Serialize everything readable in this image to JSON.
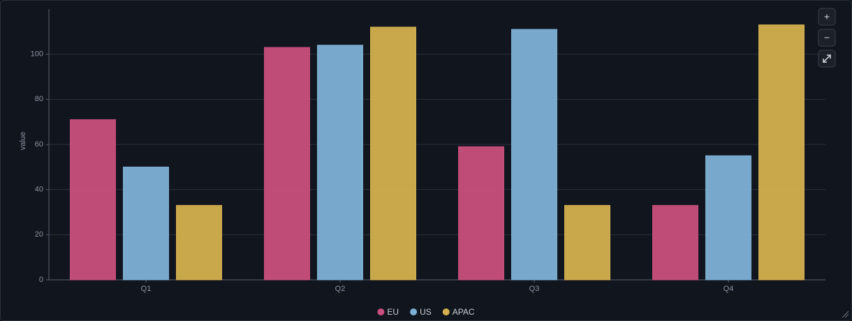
{
  "chart_data": {
    "type": "bar",
    "y_label": "value",
    "categories": [
      "Q1",
      "Q2",
      "Q3",
      "Q4"
    ],
    "series": [
      {
        "name": "EU",
        "color": "#c94f7c",
        "values": [
          71,
          103,
          59,
          33
        ]
      },
      {
        "name": "US",
        "color": "#7eb0d5",
        "values": [
          50,
          104,
          111,
          55
        ]
      },
      {
        "name": "APAC",
        "color": "#d4b04f",
        "values": [
          33,
          112,
          33,
          113
        ]
      }
    ],
    "ylim": [
      0,
      120
    ],
    "yticks": [
      0,
      20,
      40,
      60,
      80,
      100
    ],
    "grid": true,
    "legend": "bottom"
  },
  "controls": {
    "zoom_in": "+",
    "zoom_out": "−"
  }
}
